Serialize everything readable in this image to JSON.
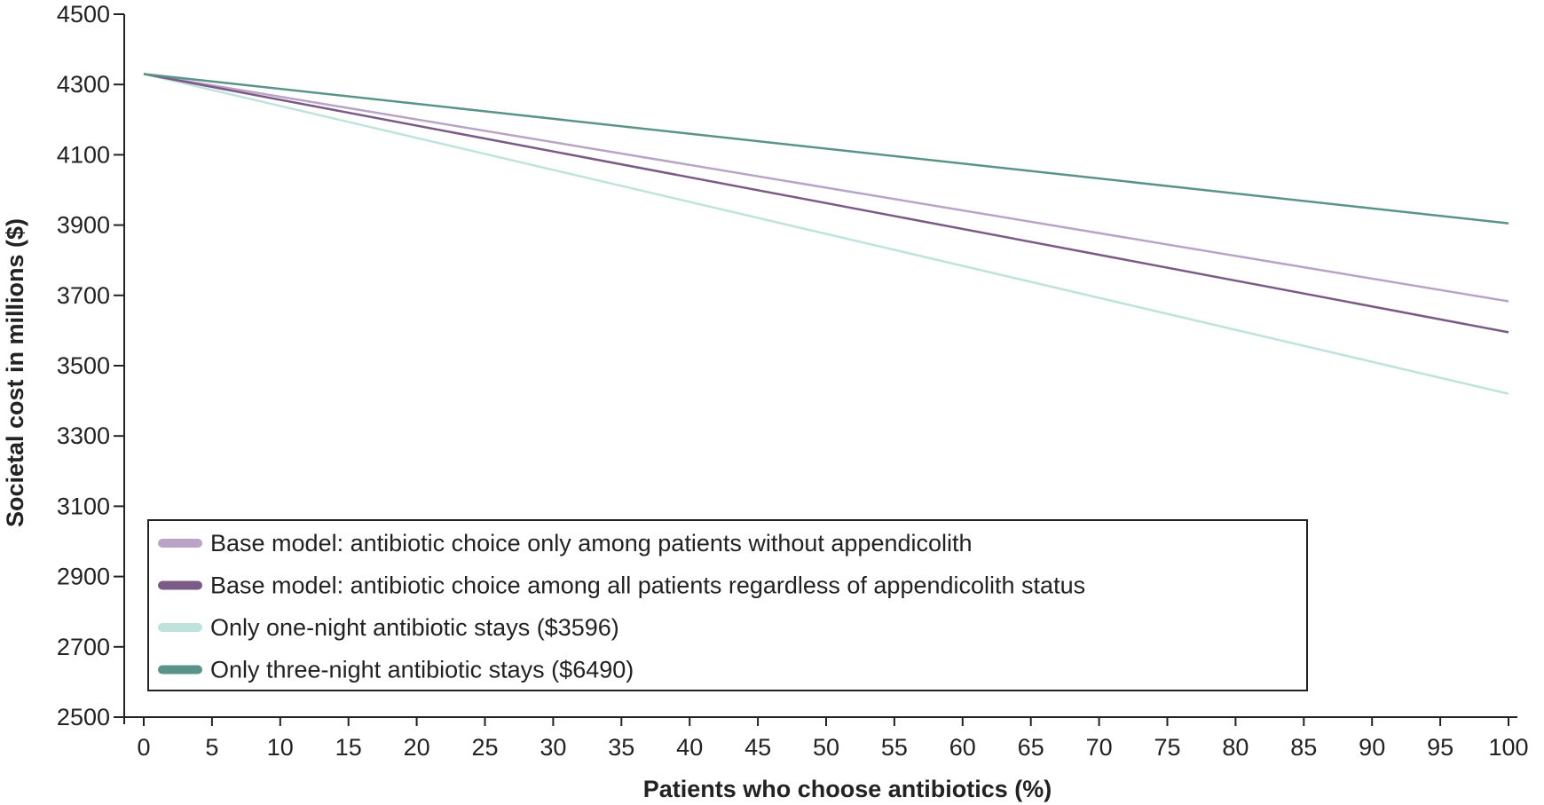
{
  "chart_data": {
    "type": "line",
    "title": "",
    "xlabel": "Patients who choose antibiotics (%)",
    "ylabel": "Societal cost in millions ($)",
    "xlim": [
      0,
      100
    ],
    "ylim": [
      2500,
      4500
    ],
    "x_ticks": [
      "0",
      "5",
      "10",
      "15",
      "20",
      "25",
      "30",
      "35",
      "40",
      "45",
      "50",
      "55",
      "60",
      "65",
      "70",
      "75",
      "80",
      "85",
      "90",
      "95",
      "100"
    ],
    "y_ticks": [
      "2500",
      "2700",
      "2900",
      "3100",
      "3300",
      "3500",
      "3700",
      "3900",
      "4100",
      "4300",
      "4500"
    ],
    "grid": false,
    "legend_position": "bottom-left",
    "series": [
      {
        "name": "Base model: antibiotic choice only among patients without appendicolith",
        "color": "#b9a3c6",
        "x": [
          0,
          100
        ],
        "y": [
          4330,
          3683
        ]
      },
      {
        "name": "Base model: antibiotic choice among all patients regardless of appendicolith status",
        "color": "#7b5a86",
        "x": [
          0,
          100
        ],
        "y": [
          4330,
          3595
        ]
      },
      {
        "name": "Only one-night antibiotic stays ($3596)",
        "color": "#bfe3dc",
        "x": [
          0,
          100
        ],
        "y": [
          4330,
          3420
        ]
      },
      {
        "name": "Only three-night antibiotic stays ($6490)",
        "color": "#5a9488",
        "x": [
          0,
          100
        ],
        "y": [
          4330,
          3905
        ]
      }
    ]
  }
}
